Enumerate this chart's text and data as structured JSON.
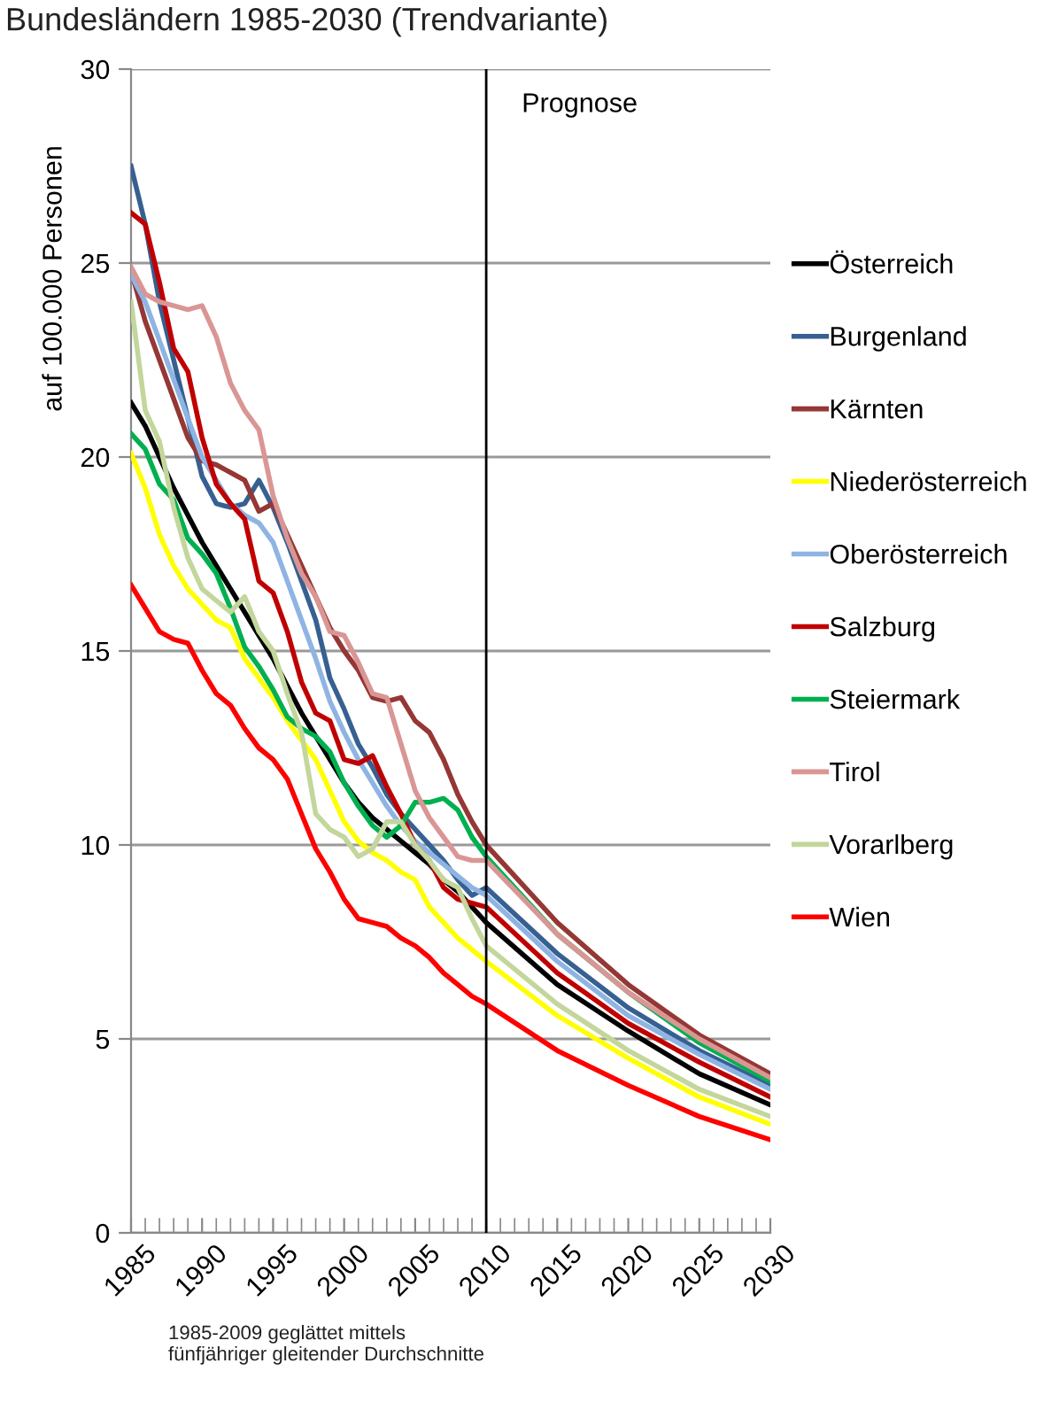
{
  "chart_data": {
    "type": "line",
    "title": "Bundesländern 1985-2030 (Trendvariante)",
    "ylabel": "auf 100.000 Personen",
    "x": [
      1985,
      1986,
      1987,
      1988,
      1989,
      1990,
      1991,
      1992,
      1993,
      1994,
      1995,
      1996,
      1997,
      1998,
      1999,
      2000,
      2001,
      2002,
      2003,
      2004,
      2005,
      2006,
      2007,
      2008,
      2009,
      2010,
      2015,
      2020,
      2025,
      2030
    ],
    "series": [
      {
        "name": "Österreich",
        "color": "#000000",
        "values": [
          21.4,
          20.8,
          20.0,
          19.2,
          18.5,
          17.8,
          17.2,
          16.6,
          16.0,
          15.4,
          14.8,
          14.1,
          13.4,
          12.8,
          12.2,
          11.6,
          11.1,
          10.7,
          10.4,
          10.1,
          9.8,
          9.5,
          9.1,
          8.8,
          8.4,
          8.0,
          6.4,
          5.2,
          4.1,
          3.3
        ]
      },
      {
        "name": "Burgenland",
        "color": "#376092",
        "values": [
          27.5,
          26.0,
          24.0,
          22.5,
          21.0,
          19.5,
          18.8,
          18.7,
          18.8,
          19.4,
          18.7,
          17.8,
          16.8,
          15.8,
          14.3,
          13.5,
          12.6,
          12.0,
          11.3,
          10.8,
          10.4,
          10.0,
          9.6,
          9.1,
          8.7,
          8.9,
          7.2,
          5.8,
          4.7,
          3.8
        ]
      },
      {
        "name": "Kärnten",
        "color": "#953735",
        "values": [
          24.8,
          23.5,
          22.5,
          21.5,
          20.5,
          19.9,
          19.8,
          19.6,
          19.4,
          18.6,
          18.8,
          18.0,
          17.2,
          16.4,
          15.6,
          15.0,
          14.5,
          13.8,
          13.7,
          13.8,
          13.2,
          12.9,
          12.2,
          11.3,
          10.6,
          10.0,
          8.0,
          6.4,
          5.1,
          4.1
        ]
      },
      {
        "name": "Niederösterreich",
        "color": "#ffff00",
        "values": [
          20.1,
          19.2,
          18.0,
          17.2,
          16.6,
          16.2,
          15.8,
          15.6,
          14.8,
          14.3,
          13.8,
          13.2,
          12.7,
          12.2,
          11.4,
          10.6,
          10.1,
          9.8,
          9.6,
          9.3,
          9.1,
          8.4,
          8.0,
          7.6,
          7.3,
          7.0,
          5.6,
          4.5,
          3.5,
          2.8
        ]
      },
      {
        "name": "Oberösterreich",
        "color": "#8eb4e3",
        "values": [
          24.7,
          24.0,
          23.0,
          22.0,
          21.0,
          20.0,
          19.4,
          18.8,
          18.5,
          18.3,
          17.8,
          16.8,
          15.8,
          14.8,
          13.7,
          12.9,
          12.2,
          11.6,
          11.0,
          10.5,
          10.1,
          9.8,
          9.5,
          9.2,
          8.9,
          8.7,
          7.0,
          5.6,
          4.6,
          3.7
        ]
      },
      {
        "name": "Salzburg",
        "color": "#c00000",
        "values": [
          26.3,
          26.0,
          24.5,
          22.8,
          22.2,
          20.5,
          19.3,
          18.8,
          18.4,
          16.8,
          16.5,
          15.5,
          14.2,
          13.4,
          13.2,
          12.2,
          12.1,
          12.3,
          11.5,
          10.8,
          10.0,
          9.6,
          8.9,
          8.6,
          8.5,
          8.4,
          6.7,
          5.4,
          4.4,
          3.5
        ]
      },
      {
        "name": "Steiermark",
        "color": "#00b050",
        "values": [
          20.6,
          20.2,
          19.3,
          18.9,
          17.9,
          17.5,
          17.0,
          16.1,
          15.1,
          14.6,
          14.0,
          13.3,
          13.0,
          12.8,
          12.4,
          11.6,
          11.0,
          10.5,
          10.2,
          10.5,
          11.1,
          11.1,
          11.2,
          10.9,
          10.2,
          9.7,
          7.7,
          6.2,
          4.9,
          3.9
        ]
      },
      {
        "name": "Tirol",
        "color": "#d99694",
        "values": [
          24.9,
          24.2,
          24.0,
          23.9,
          23.8,
          23.9,
          23.1,
          21.9,
          21.2,
          20.7,
          19.0,
          17.9,
          17.0,
          16.4,
          15.5,
          15.4,
          14.7,
          13.9,
          13.8,
          12.6,
          11.4,
          10.7,
          10.2,
          9.7,
          9.6,
          9.6,
          7.7,
          6.2,
          5.0,
          4.0
        ]
      },
      {
        "name": "Vorarlberg",
        "color": "#c3d69b",
        "values": [
          24.0,
          21.2,
          20.4,
          18.7,
          17.4,
          16.6,
          16.3,
          16.0,
          16.4,
          15.5,
          15.0,
          13.9,
          12.9,
          10.8,
          10.4,
          10.2,
          9.7,
          9.9,
          10.6,
          10.6,
          10.0,
          9.6,
          9.1,
          8.9,
          8.1,
          7.4,
          5.9,
          4.7,
          3.7,
          3.0
        ]
      },
      {
        "name": "Wien",
        "color": "#ff0000",
        "values": [
          16.7,
          16.1,
          15.5,
          15.3,
          15.2,
          14.5,
          13.9,
          13.6,
          13.0,
          12.5,
          12.2,
          11.7,
          10.8,
          9.9,
          9.3,
          8.6,
          8.1,
          8.0,
          7.9,
          7.6,
          7.4,
          7.1,
          6.7,
          6.4,
          6.1,
          5.9,
          4.7,
          3.8,
          3.0,
          2.4
        ]
      }
    ],
    "xlim": [
      1985,
      2030
    ],
    "xticks": [
      1985,
      1990,
      1995,
      2000,
      2005,
      2010,
      2015,
      2020,
      2025,
      2030
    ],
    "ylim": [
      0,
      30
    ],
    "yticks": [
      0,
      5,
      10,
      15,
      20,
      25,
      30
    ],
    "ref_lines": [
      {
        "axis": "x",
        "value": 2010,
        "label": "Prognose",
        "color": "#000000"
      }
    ],
    "grid": "y",
    "legend": "right",
    "marker": "none",
    "line_style": "solid",
    "annotations": [
      "1985-2009 geglättet mittels\nfünfjähriger gleitender Durchschnitte"
    ]
  }
}
